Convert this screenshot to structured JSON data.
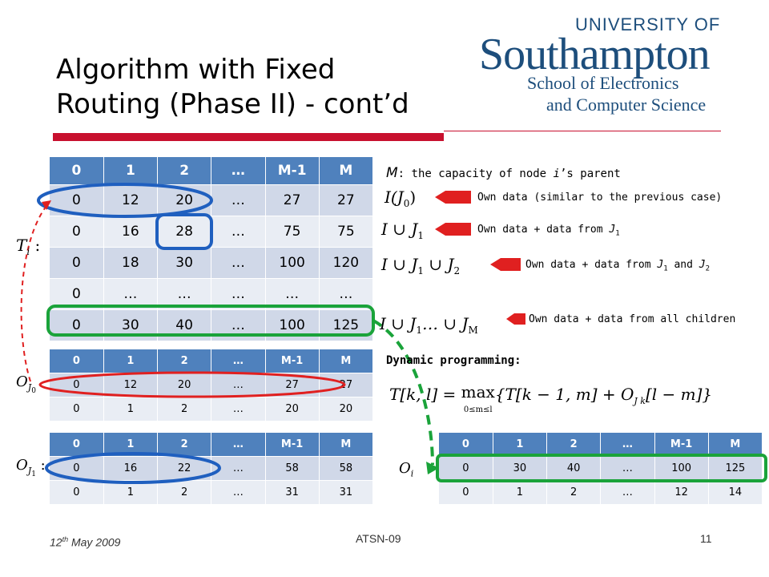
{
  "slide": {
    "title_line1": "Algorithm with Fixed",
    "title_line2": "Routing (Phase II) - cont’d",
    "logo": {
      "line1": "UNIVERSITY OF",
      "line2": "Southampton",
      "line3": "School of Electronics",
      "line4": "and Computer Science"
    },
    "colors": {
      "accent_red": "#c8102e",
      "header_blue": "#4f81bd",
      "row_light": "#d0d8e8",
      "row_lighter": "#e9edf4",
      "logo_blue": "#1d4e7c",
      "highlight_blue": "#1f5fbf",
      "highlight_red": "#e02020",
      "highlight_green": "#1aa33a"
    }
  },
  "main_table": {
    "headers": [
      "0",
      "1",
      "2",
      "…",
      "M-1",
      "M"
    ],
    "rows": [
      [
        "0",
        "12",
        "20",
        "…",
        "27",
        "27"
      ],
      [
        "0",
        "16",
        "28",
        "…",
        "75",
        "75"
      ],
      [
        "0",
        "18",
        "30",
        "…",
        "100",
        "120"
      ],
      [
        "0",
        "…",
        "…",
        "…",
        "…",
        "…"
      ],
      [
        "0",
        "30",
        "40",
        "…",
        "100",
        "125"
      ]
    ]
  },
  "oj0_table": {
    "headers": [
      "0",
      "1",
      "2",
      "…",
      "M-1",
      "M"
    ],
    "rows": [
      [
        "0",
        "12",
        "20",
        "…",
        "27",
        "27"
      ],
      [
        "0",
        "1",
        "2",
        "…",
        "20",
        "20"
      ]
    ]
  },
  "oj1_table": {
    "headers": [
      "0",
      "1",
      "2",
      "…",
      "M-1",
      "M"
    ],
    "rows": [
      [
        "0",
        "16",
        "22",
        "…",
        "58",
        "58"
      ],
      [
        "0",
        "1",
        "2",
        "…",
        "31",
        "31"
      ]
    ]
  },
  "oi_table": {
    "headers": [
      "0",
      "1",
      "2",
      "…",
      "M-1",
      "M"
    ],
    "rows": [
      [
        "0",
        "30",
        "40",
        "…",
        "100",
        "125"
      ],
      [
        "0",
        "1",
        "2",
        "…",
        "12",
        "14"
      ]
    ]
  },
  "annotations": {
    "capacity_prefix": "M",
    "capacity_text": ": the capacity of node ",
    "capacity_i": "i",
    "capacity_suffix": "’s parent",
    "own_data": "Own data (similar to the previous case)",
    "own_j1": "Own data + data from ",
    "own_j1_sym": "J",
    "own_j1_sub": "1",
    "own_j1j2": "Own data + data from ",
    "own_j1j2_sym1": "J",
    "own_j1j2_sub1": "1",
    "own_j1j2_and": " and ",
    "own_j1j2_sym2": "J",
    "own_j1j2_sub2": "2",
    "own_all": "Own data + data from all children",
    "dynamic_programming": "Dynamic programming:"
  },
  "math_labels": {
    "ti": "T",
    "ti_sub": "i",
    "ti_colon": ":",
    "oj0": "O",
    "oj0_sub": "J",
    "oj0_subsub": "0",
    "oj1": "O",
    "oj1_sub": "J",
    "oj1_subsub": "1",
    "oj1_colon": ":",
    "oi": "O",
    "oi_sub": "i",
    "ij0": "I(J",
    "ij0_sub": "0",
    "ij0_close": ")",
    "iuj1": "I ∪ J",
    "iuj1_sub": "1",
    "iuj1j2": "I ∪ J",
    "iuj1j2_sub1": "1",
    "iuj1j2_mid": " ∪ J",
    "iuj1j2_sub2": "2",
    "iuall": "I ∪ J",
    "iuall_sub": "1",
    "iuall_mid": "… ∪ J",
    "iuall_sub2": "M",
    "dp_formula_lhs": "T[k, l] = ",
    "dp_max": "max",
    "dp_under": "0≤m≤l",
    "dp_formula_rhs": "{T[k − 1, m] + O",
    "dp_sub": "J k",
    "dp_tail": "[l − m]}"
  },
  "footer": {
    "date_prefix": "12",
    "date_sup": "th",
    "date_suffix": " May 2009",
    "center": "ATSN-09",
    "page": "11"
  }
}
